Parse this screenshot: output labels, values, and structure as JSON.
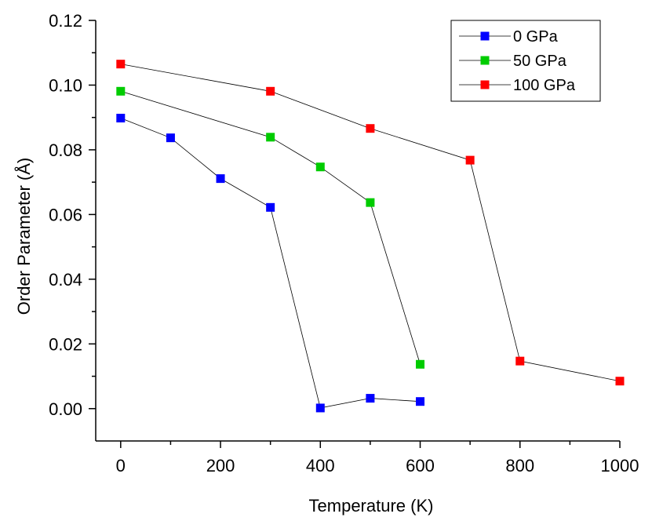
{
  "chart_data": {
    "type": "line",
    "xlabel": "Temperature (K)",
    "ylabel": "Order Parameter (Å)",
    "xlim": [
      -50,
      1000
    ],
    "ylim": [
      -0.01,
      0.12
    ],
    "x_ticks": [
      0,
      200,
      400,
      600,
      800,
      1000
    ],
    "x_tick_labels": [
      "0",
      "200",
      "400",
      "600",
      "800",
      "1000"
    ],
    "y_ticks": [
      0.0,
      0.02,
      0.04,
      0.06,
      0.08,
      0.1,
      0.12
    ],
    "y_tick_labels": [
      "0.00",
      "0.02",
      "0.04",
      "0.06",
      "0.08",
      "0.10",
      "0.12"
    ],
    "grid": false,
    "legend_position": "top-right",
    "series": [
      {
        "name": "0 GPa",
        "color": "#0000ff",
        "x": [
          0,
          100,
          200,
          300,
          400,
          500,
          600
        ],
        "y": [
          0.0898,
          0.0837,
          0.0711,
          0.0622,
          0.0002,
          0.0032,
          0.0022
        ]
      },
      {
        "name": "50 GPa",
        "color": "#00cc00",
        "x": [
          0,
          300,
          400,
          500,
          600
        ],
        "y": [
          0.0981,
          0.0839,
          0.0747,
          0.0637,
          0.0137
        ]
      },
      {
        "name": "100 GPa",
        "color": "#ff0000",
        "x": [
          0,
          300,
          500,
          700,
          800,
          1000
        ],
        "y": [
          0.1065,
          0.0981,
          0.0866,
          0.0768,
          0.0147,
          0.0085
        ]
      }
    ],
    "line_color": "#000000"
  }
}
